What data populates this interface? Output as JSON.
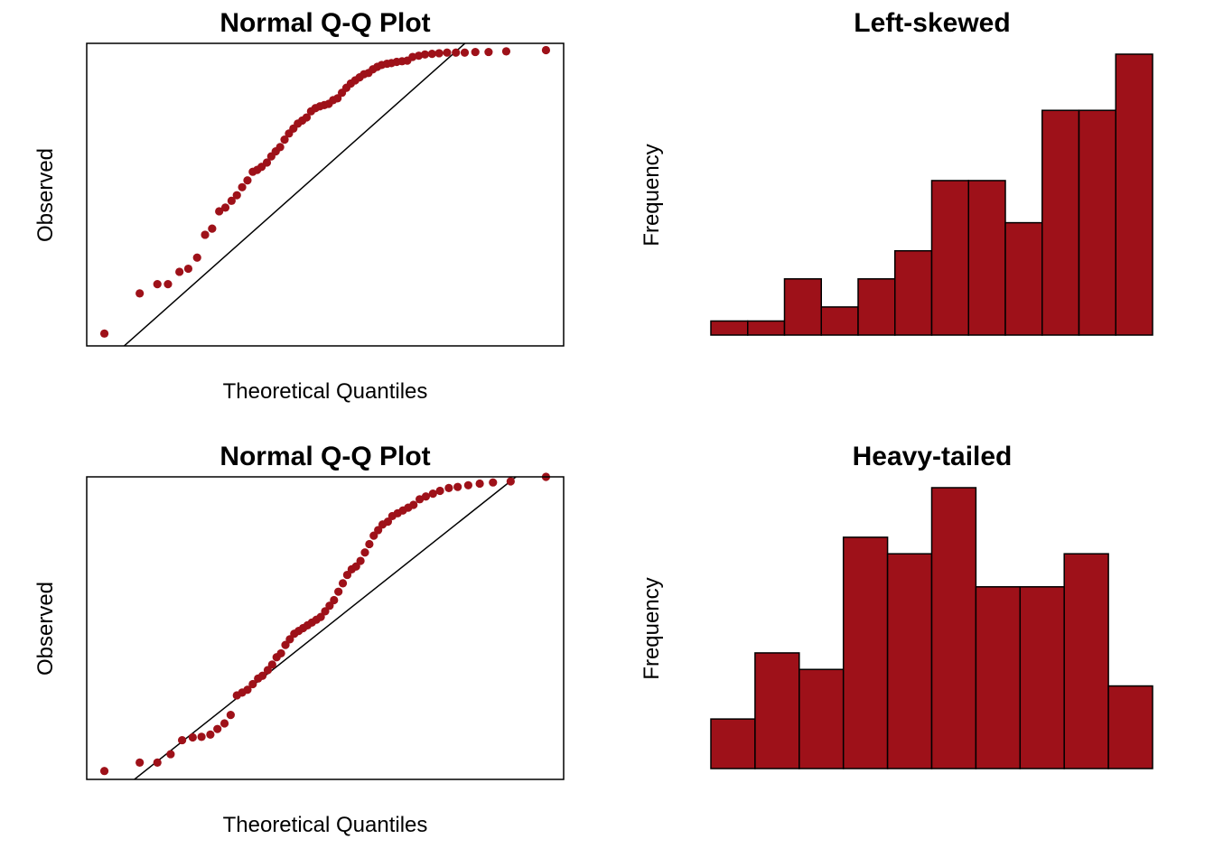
{
  "colors": {
    "accent": "#9e1119",
    "frame": "#000000",
    "background": "#ffffff"
  },
  "chart_data": [
    {
      "type": "scatter",
      "title": "Normal Q-Q Plot",
      "xlabel": "Theoretical Quantiles",
      "ylabel": "Observed",
      "ticks_shown": false,
      "xlim": [
        -2.7,
        2.7
      ],
      "ylim": [
        -2.8,
        2.1
      ],
      "reference_line": {
        "intercept": 0.09,
        "slope": 1.27
      },
      "x": [
        -2.5,
        -2.1,
        -1.9,
        -1.78,
        -1.65,
        -1.55,
        -1.45,
        -1.36,
        -1.28,
        -1.2,
        -1.13,
        -1.06,
        -1.0,
        -0.94,
        -0.88,
        -0.82,
        -0.77,
        -0.72,
        -0.66,
        -0.61,
        -0.56,
        -0.51,
        -0.46,
        -0.41,
        -0.36,
        -0.31,
        -0.26,
        -0.21,
        -0.16,
        -0.11,
        -0.06,
        -0.01,
        0.04,
        0.09,
        0.14,
        0.19,
        0.24,
        0.29,
        0.34,
        0.39,
        0.44,
        0.49,
        0.54,
        0.59,
        0.64,
        0.7,
        0.75,
        0.81,
        0.87,
        0.93,
        0.99,
        1.06,
        1.13,
        1.21,
        1.29,
        1.38,
        1.48,
        1.58,
        1.7,
        1.85,
        2.05,
        2.5
      ],
      "y": [
        -2.6,
        -1.95,
        -1.8,
        -1.8,
        -1.6,
        -1.55,
        -1.37,
        -1.0,
        -0.9,
        -0.62,
        -0.56,
        -0.45,
        -0.36,
        -0.23,
        -0.12,
        0.02,
        0.05,
        0.1,
        0.17,
        0.27,
        0.35,
        0.42,
        0.54,
        0.64,
        0.72,
        0.8,
        0.85,
        0.9,
        1.0,
        1.05,
        1.08,
        1.1,
        1.12,
        1.18,
        1.21,
        1.3,
        1.38,
        1.45,
        1.5,
        1.55,
        1.6,
        1.62,
        1.68,
        1.72,
        1.75,
        1.77,
        1.78,
        1.8,
        1.81,
        1.82,
        1.88,
        1.9,
        1.92,
        1.93,
        1.94,
        1.95,
        1.95,
        1.95,
        1.96,
        1.96,
        1.97,
        1.99
      ]
    },
    {
      "type": "bar",
      "title": "Left-skewed",
      "xlabel": "",
      "ylabel": "Frequency",
      "ticks_shown": false,
      "ylim": [
        0,
        20
      ],
      "values": [
        1,
        1,
        4,
        2,
        4,
        6,
        11,
        11,
        8,
        16,
        16,
        20
      ]
    },
    {
      "type": "scatter",
      "title": "Normal Q-Q Plot",
      "xlabel": "Theoretical Quantiles",
      "ylabel": "Observed",
      "ticks_shown": false,
      "xlim": [
        -2.7,
        2.7
      ],
      "ylim": [
        -2.7,
        2.7
      ],
      "reference_line": {
        "intercept": 0.0,
        "slope": 1.25
      },
      "x": [
        -2.5,
        -2.1,
        -1.9,
        -1.75,
        -1.62,
        -1.5,
        -1.4,
        -1.3,
        -1.22,
        -1.14,
        -1.07,
        -1.0,
        -0.94,
        -0.88,
        -0.82,
        -0.76,
        -0.71,
        -0.65,
        -0.6,
        -0.55,
        -0.5,
        -0.45,
        -0.4,
        -0.35,
        -0.3,
        -0.25,
        -0.2,
        -0.15,
        -0.1,
        -0.05,
        0.0,
        0.05,
        0.1,
        0.15,
        0.2,
        0.25,
        0.3,
        0.35,
        0.4,
        0.45,
        0.5,
        0.55,
        0.6,
        0.65,
        0.71,
        0.76,
        0.82,
        0.88,
        0.94,
        1.0,
        1.07,
        1.14,
        1.22,
        1.3,
        1.4,
        1.5,
        1.62,
        1.75,
        1.9,
        2.1,
        2.5
      ],
      "y": [
        -2.55,
        -2.4,
        -2.4,
        -2.25,
        -2.0,
        -1.95,
        -1.94,
        -1.9,
        -1.8,
        -1.7,
        -1.55,
        -1.2,
        -1.15,
        -1.1,
        -1.0,
        -0.9,
        -0.85,
        -0.75,
        -0.65,
        -0.52,
        -0.45,
        -0.3,
        -0.2,
        -0.1,
        -0.05,
        0.0,
        0.05,
        0.1,
        0.15,
        0.2,
        0.3,
        0.4,
        0.5,
        0.65,
        0.8,
        0.95,
        1.05,
        1.1,
        1.2,
        1.35,
        1.5,
        1.65,
        1.75,
        1.85,
        1.9,
        2.0,
        2.05,
        2.1,
        2.15,
        2.2,
        2.3,
        2.35,
        2.4,
        2.45,
        2.5,
        2.52,
        2.55,
        2.58,
        2.6,
        2.62,
        2.7
      ]
    },
    {
      "type": "bar",
      "title": "Heavy-tailed",
      "xlabel": "",
      "ylabel": "Frequency",
      "ticks_shown": false,
      "ylim": [
        0,
        17
      ],
      "values": [
        3,
        7,
        6,
        14,
        13,
        17,
        11,
        11,
        13,
        5
      ]
    }
  ]
}
